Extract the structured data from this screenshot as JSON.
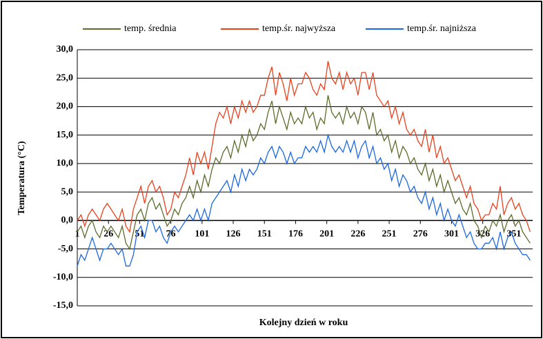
{
  "chart_data": {
    "type": "line",
    "xlabel": "Kolejny dzień w roku",
    "ylabel": "Temperatura (°C)",
    "x": [
      1,
      4,
      7,
      10,
      13,
      16,
      19,
      22,
      25,
      28,
      31,
      34,
      37,
      40,
      43,
      46,
      49,
      52,
      55,
      58,
      61,
      64,
      67,
      70,
      73,
      76,
      79,
      82,
      85,
      88,
      91,
      94,
      97,
      100,
      103,
      106,
      109,
      112,
      115,
      118,
      121,
      124,
      127,
      130,
      133,
      136,
      139,
      142,
      145,
      148,
      151,
      154,
      157,
      160,
      163,
      166,
      169,
      172,
      175,
      178,
      181,
      184,
      187,
      190,
      193,
      196,
      199,
      202,
      205,
      208,
      211,
      214,
      217,
      220,
      223,
      226,
      229,
      232,
      235,
      238,
      241,
      244,
      247,
      250,
      253,
      256,
      259,
      262,
      265,
      268,
      271,
      274,
      277,
      280,
      283,
      286,
      289,
      292,
      295,
      298,
      301,
      304,
      307,
      310,
      313,
      316,
      319,
      322,
      325,
      328,
      331,
      334,
      337,
      340,
      343,
      346,
      349,
      352,
      355,
      358,
      361,
      364
    ],
    "series": [
      {
        "name": "temp. średnia",
        "color": "#5a6b2a",
        "values": [
          -2,
          -1,
          -3,
          -1,
          0,
          -2,
          -3,
          -1,
          -2,
          -1,
          -2,
          -3,
          -1,
          -4,
          -5,
          -2,
          1,
          2,
          0,
          3,
          4,
          2,
          3,
          1,
          -1,
          0,
          2,
          1,
          3,
          4,
          6,
          4,
          7,
          5,
          8,
          6,
          9,
          11,
          10,
          12,
          13,
          11,
          14,
          12,
          15,
          13,
          16,
          14,
          15,
          17,
          16,
          19,
          21,
          17,
          20,
          18,
          16,
          19,
          17,
          18,
          17,
          20,
          18,
          19,
          16,
          18,
          17,
          22,
          19,
          18,
          19,
          17,
          20,
          18,
          19,
          17,
          20,
          19,
          16,
          19,
          15,
          16,
          14,
          15,
          12,
          14,
          11,
          13,
          12,
          10,
          11,
          9,
          8,
          10,
          7,
          9,
          6,
          8,
          5,
          7,
          5,
          3,
          4,
          2,
          1,
          3,
          0,
          -1,
          -3,
          -1,
          -2,
          0,
          -1,
          1,
          -2,
          0,
          1,
          -1,
          0,
          -2,
          -3,
          -4
        ]
      },
      {
        "name": "temp.śr. najwyższa",
        "color": "#e8401c",
        "values": [
          0,
          1,
          -1,
          1,
          2,
          1,
          0,
          2,
          3,
          2,
          1,
          0,
          2,
          -1,
          -2,
          2,
          4,
          6,
          3,
          6,
          7,
          5,
          6,
          4,
          1,
          2,
          5,
          4,
          6,
          8,
          11,
          8,
          12,
          10,
          12,
          9,
          13,
          17,
          19,
          18,
          20,
          17,
          20,
          18,
          21,
          19,
          21,
          19,
          20,
          22,
          22,
          25,
          27,
          22,
          26,
          24,
          21,
          25,
          22,
          24,
          24,
          26,
          25,
          23,
          22,
          24,
          23,
          28,
          25,
          24,
          26,
          23,
          26,
          24,
          25,
          22,
          26,
          26,
          23,
          26,
          22,
          21,
          20,
          21,
          18,
          20,
          17,
          19,
          16,
          15,
          16,
          14,
          13,
          16,
          12,
          15,
          11,
          13,
          10,
          11,
          9,
          7,
          8,
          6,
          4,
          6,
          3,
          2,
          0,
          1,
          1,
          3,
          2,
          6,
          1,
          3,
          4,
          2,
          3,
          1,
          0,
          -2
        ]
      },
      {
        "name": "temp.śr. najniższa",
        "color": "#1a66e0",
        "values": [
          -8,
          -6,
          -7,
          -5,
          -3,
          -5,
          -7,
          -5,
          -5,
          -4,
          -5,
          -6,
          -5,
          -8,
          -8,
          -6,
          -2,
          -1,
          -3,
          0,
          0,
          -2,
          -1,
          -3,
          -4,
          -2,
          -1,
          -2,
          -1,
          0,
          1,
          0,
          2,
          0,
          2,
          0,
          3,
          4,
          5,
          6,
          7,
          5,
          8,
          6,
          9,
          7,
          9,
          8,
          9,
          11,
          10,
          12,
          13,
          11,
          13,
          12,
          10,
          12,
          10,
          11,
          11,
          13,
          12,
          13,
          12,
          14,
          12,
          15,
          13,
          12,
          13,
          12,
          14,
          12,
          14,
          11,
          13,
          14,
          11,
          13,
          10,
          11,
          9,
          10,
          7,
          9,
          6,
          8,
          7,
          5,
          6,
          4,
          3,
          5,
          2,
          4,
          1,
          3,
          0,
          2,
          0,
          -1,
          1,
          -1,
          -3,
          -2,
          -4,
          -5,
          -5,
          -4,
          -4,
          -3,
          -5,
          -2,
          -5,
          -3,
          -2,
          -4,
          -5,
          -6,
          -6,
          -7
        ]
      }
    ],
    "xlim": [
      1,
      366
    ],
    "xticks": [
      1,
      26,
      51,
      76,
      101,
      126,
      151,
      176,
      201,
      226,
      251,
      276,
      301,
      326,
      351
    ],
    "ylim": [
      -15,
      30
    ],
    "yticks": [
      {
        "value": -15,
        "label": "-15,0"
      },
      {
        "value": -10,
        "label": "-10,0"
      },
      {
        "value": -5,
        "label": "-5,0"
      },
      {
        "value": 0,
        "label": "0,0"
      },
      {
        "value": 5,
        "label": "5,0"
      },
      {
        "value": 10,
        "label": "10,0"
      },
      {
        "value": 15,
        "label": "15,0"
      },
      {
        "value": 20,
        "label": "20,0"
      },
      {
        "value": 25,
        "label": "25,0"
      },
      {
        "value": 30,
        "label": "30,0"
      }
    ],
    "grid": true
  }
}
